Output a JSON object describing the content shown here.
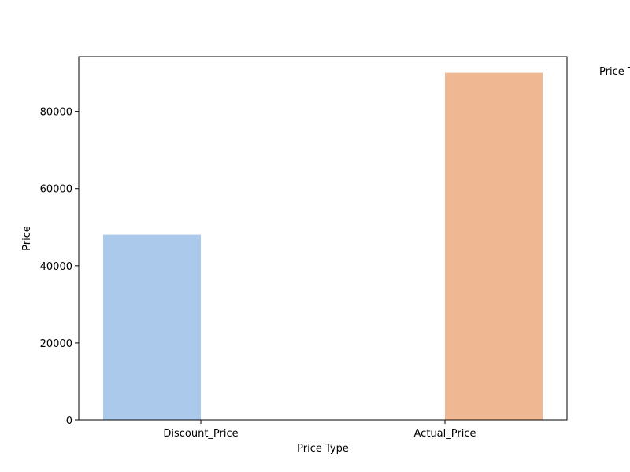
{
  "chart_data": {
    "type": "bar",
    "title": "",
    "xlabel": "Price Type",
    "ylabel": "Price",
    "categories": [
      "Discount_Price",
      "Actual_Price"
    ],
    "series": [
      {
        "values": [
          48000,
          0
        ],
        "color": "#abc9ea"
      },
      {
        "values": [
          0,
          90000
        ],
        "color": "#efb792"
      }
    ],
    "ylim": [
      0,
      94200
    ],
    "yticks": [
      0,
      20000,
      40000,
      60000,
      80000
    ],
    "ytick_labels": [
      "0",
      "20000",
      "40000",
      "60000",
      "80000"
    ],
    "grid": false,
    "legend": {
      "title": "Price T",
      "placement": "upper right, outside plot (clipped)"
    }
  }
}
